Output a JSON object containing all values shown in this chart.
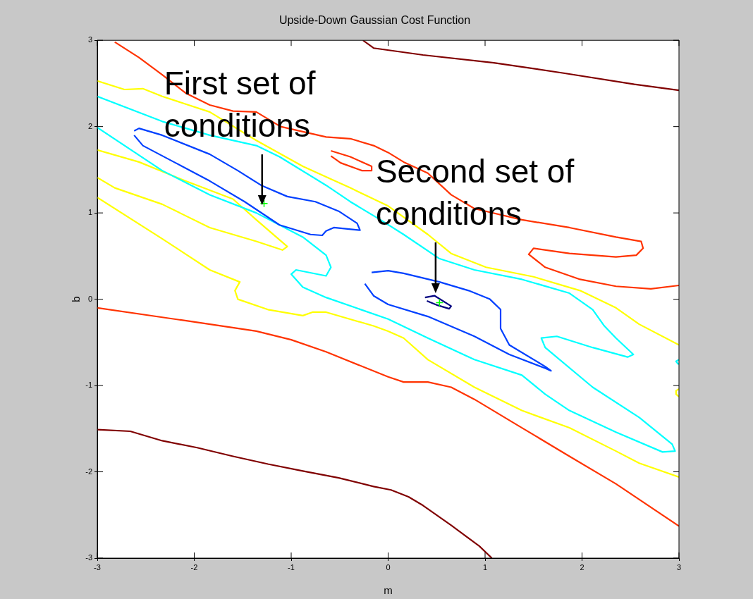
{
  "chart_data": {
    "type": "line",
    "title": "Upside-Down Gaussian Cost Function",
    "xlabel": "m",
    "ylabel": "b",
    "xlim": [
      -3,
      3
    ],
    "ylim": [
      -3,
      3
    ],
    "xticks": [
      -3,
      -2,
      -1,
      0,
      1,
      2,
      3
    ],
    "yticks": [
      -3,
      -2,
      -1,
      0,
      1,
      2,
      3
    ],
    "grid": false,
    "legend": false,
    "marker": "none",
    "annotations": [
      {
        "text": "First set of conditions",
        "x": -1.3,
        "y": 1.09
      },
      {
        "text": "Second set of conditions",
        "x": 0.49,
        "y": 0.07
      }
    ],
    "series": [
      {
        "color": "#800000",
        "x": [
          -0.26,
          -0.15,
          0.36,
          1.09,
          1.81,
          2.54,
          3
        ],
        "values": [
          3,
          2.91,
          2.83,
          2.74,
          2.62,
          2.49,
          2.42
        ]
      },
      {
        "color": "#800000",
        "x": [
          -3,
          -2.66,
          -2.33,
          -1.97,
          -1.6,
          -1.24,
          -0.88,
          -0.51,
          -0.15,
          0.03,
          0.21,
          0.36,
          0.65,
          0.94,
          1.07
        ],
        "values": [
          -1.51,
          -1.53,
          -1.64,
          -1.72,
          -1.82,
          -1.91,
          -1.99,
          -2.07,
          -2.17,
          -2.21,
          -2.29,
          -2.39,
          -2.62,
          -2.86,
          -3
        ]
      },
      {
        "color": "#ff3300",
        "x": [
          -2.82,
          -2.57,
          -2.33,
          -2.09,
          -1.84,
          -1.6,
          -1.36,
          -1.11,
          -0.64,
          -0.39,
          -0.15,
          0,
          0.16,
          0.41,
          0.65,
          0.89,
          1.38,
          1.87,
          2.35,
          2.61,
          2.63,
          2.56,
          2.35,
          1.87,
          1.5,
          1.45,
          1.62,
          1.98,
          2.35,
          2.71,
          3
        ],
        "values": [
          2.98,
          2.8,
          2.6,
          2.39,
          2.25,
          2.18,
          2.17,
          2,
          1.88,
          1.86,
          1.78,
          1.7,
          1.59,
          1.46,
          1.21,
          1.05,
          0.92,
          0.83,
          0.72,
          0.67,
          0.59,
          0.51,
          0.49,
          0.53,
          0.59,
          0.52,
          0.37,
          0.23,
          0.15,
          0.12,
          0.16
        ]
      },
      {
        "color": "#ff3300",
        "x": [
          -0.59,
          -0.39,
          -0.17,
          -0.17,
          -0.27,
          -0.49,
          -0.59
        ],
        "values": [
          1.72,
          1.65,
          1.54,
          1.49,
          1.49,
          1.58,
          1.66
        ]
      },
      {
        "color": "#ff3300",
        "x": [
          -3,
          -2.02,
          -1.36,
          -1,
          -0.64,
          0,
          0.16,
          0.41,
          0.65,
          0.89,
          1.38,
          1.87,
          2.35,
          3
        ],
        "values": [
          -0.1,
          -0.26,
          -0.37,
          -0.47,
          -0.61,
          -0.9,
          -0.96,
          -0.96,
          -1.02,
          -1.16,
          -1.49,
          -1.82,
          -2.14,
          -2.63
        ]
      },
      {
        "color": "#ffff00",
        "x": [
          -3,
          -2.72,
          -2.53,
          -2.33,
          -1.84,
          -1.36,
          -0.88,
          -0.39,
          0,
          0.41,
          0.65,
          1.01,
          1.5,
          1.98,
          2.35,
          2.59,
          3
        ],
        "values": [
          2.53,
          2.43,
          2.44,
          2.35,
          2.17,
          1.84,
          1.54,
          1.29,
          1.08,
          0.75,
          0.53,
          0.37,
          0.26,
          0.1,
          -0.1,
          -0.29,
          -0.53
        ]
      },
      {
        "color": "#ffff00",
        "x": [
          -3,
          -2.57,
          -2.09,
          -1.6,
          -1.36,
          -1.04,
          -1.09,
          -1.36,
          -1.84,
          -2.33,
          -2.82,
          -3
        ],
        "values": [
          1.73,
          1.59,
          1.37,
          1.16,
          0.92,
          0.61,
          0.57,
          0.67,
          0.83,
          1.1,
          1.29,
          1.41
        ]
      },
      {
        "color": "#ffff00",
        "x": [
          -3,
          -2.33,
          -1.84,
          -1.53,
          -1.58,
          -1.55,
          -1.24,
          -0.88,
          -0.78,
          -0.64,
          -0.15,
          0,
          0.16,
          0.41,
          0.89,
          1.38,
          1.87,
          2.35,
          2.59,
          3
        ],
        "values": [
          1.18,
          0.7,
          0.34,
          0.2,
          0.1,
          0,
          -0.12,
          -0.19,
          -0.15,
          -0.15,
          -0.31,
          -0.37,
          -0.45,
          -0.7,
          -1.02,
          -1.29,
          -1.49,
          -1.76,
          -1.9,
          -2.06
        ]
      },
      {
        "color": "#ffff00",
        "x": [
          3,
          2.97,
          2.97,
          3
        ],
        "values": [
          -1.04,
          -1.06,
          -1.1,
          -1.13
        ]
      },
      {
        "color": "#00ffff",
        "x": [
          -3,
          -2.33,
          -1.84,
          -1.36,
          -0.88,
          -0.64,
          -0.59,
          -0.64,
          -0.95,
          -1,
          -0.88,
          -0.64,
          0,
          0.41,
          0.89,
          1.38,
          1.62,
          1.87,
          2.35,
          2.83,
          2.96,
          2.93,
          2.59,
          2.11,
          1.62,
          1.58,
          1.74,
          2.11,
          2.47,
          2.53,
          2.35,
          2.23,
          2.11,
          1.87,
          1.38,
          0.89,
          0.53,
          0.16,
          -0.08,
          -0.39,
          -0.64,
          -1.12,
          -1.36,
          -1.84,
          -2.33,
          -3
        ],
        "values": [
          1.99,
          1.49,
          1.21,
          1,
          0.72,
          0.51,
          0.37,
          0.27,
          0.34,
          0.29,
          0.14,
          0.02,
          -0.23,
          -0.45,
          -0.7,
          -0.88,
          -1.1,
          -1.29,
          -1.54,
          -1.77,
          -1.76,
          -1.68,
          -1.37,
          -1.02,
          -0.56,
          -0.45,
          -0.43,
          -0.56,
          -0.67,
          -0.64,
          -0.45,
          -0.31,
          -0.12,
          0.07,
          0.23,
          0.34,
          0.47,
          0.75,
          0.92,
          1.13,
          1.32,
          1.65,
          1.78,
          1.9,
          2.06,
          2.35
        ]
      },
      {
        "color": "#00ffff",
        "x": [
          3,
          2.97,
          2.99,
          3
        ],
        "values": [
          -0.7,
          -0.72,
          -0.75,
          -0.75
        ]
      },
      {
        "color": "#0040ff",
        "x": [
          -2.62,
          -2.57,
          -2.33,
          -1.84,
          -1.55,
          -1.31,
          -1.04,
          -0.75,
          -0.51,
          -0.32,
          -0.29,
          -0.56,
          -0.64,
          -0.68,
          -0.8,
          -1.12,
          -1.48,
          -1.84,
          -2.21,
          -2.53,
          -2.62
        ],
        "values": [
          1.95,
          1.98,
          1.9,
          1.68,
          1.49,
          1.32,
          1.19,
          1.13,
          1.02,
          0.88,
          0.8,
          0.83,
          0.79,
          0.74,
          0.75,
          0.86,
          1.13,
          1.37,
          1.59,
          1.78,
          1.9
        ]
      },
      {
        "color": "#0040ff",
        "x": [
          -0.17,
          0,
          0.16,
          0.53,
          0.83,
          1.05,
          1.16,
          1.16,
          1.25,
          1.62,
          1.68,
          1.62,
          1.25,
          0.89,
          0.41,
          0,
          -0.15,
          -0.24
        ],
        "values": [
          0.31,
          0.33,
          0.3,
          0.2,
          0.1,
          0,
          -0.12,
          -0.34,
          -0.53,
          -0.78,
          -0.83,
          -0.8,
          -0.64,
          -0.43,
          -0.2,
          -0.06,
          0.04,
          0.18
        ]
      },
      {
        "color": "#000080",
        "x": [
          0.38,
          0.48,
          0.65,
          0.63,
          0.51,
          0.4
        ],
        "values": [
          0.02,
          0.04,
          -0.08,
          -0.11,
          -0.07,
          -0.02
        ]
      },
      {
        "type": "scatter",
        "marker": "cross",
        "color": "#00ff00",
        "x": [
          -1.28,
          0.53
        ],
        "values": [
          1.11,
          -0.04
        ]
      }
    ]
  }
}
